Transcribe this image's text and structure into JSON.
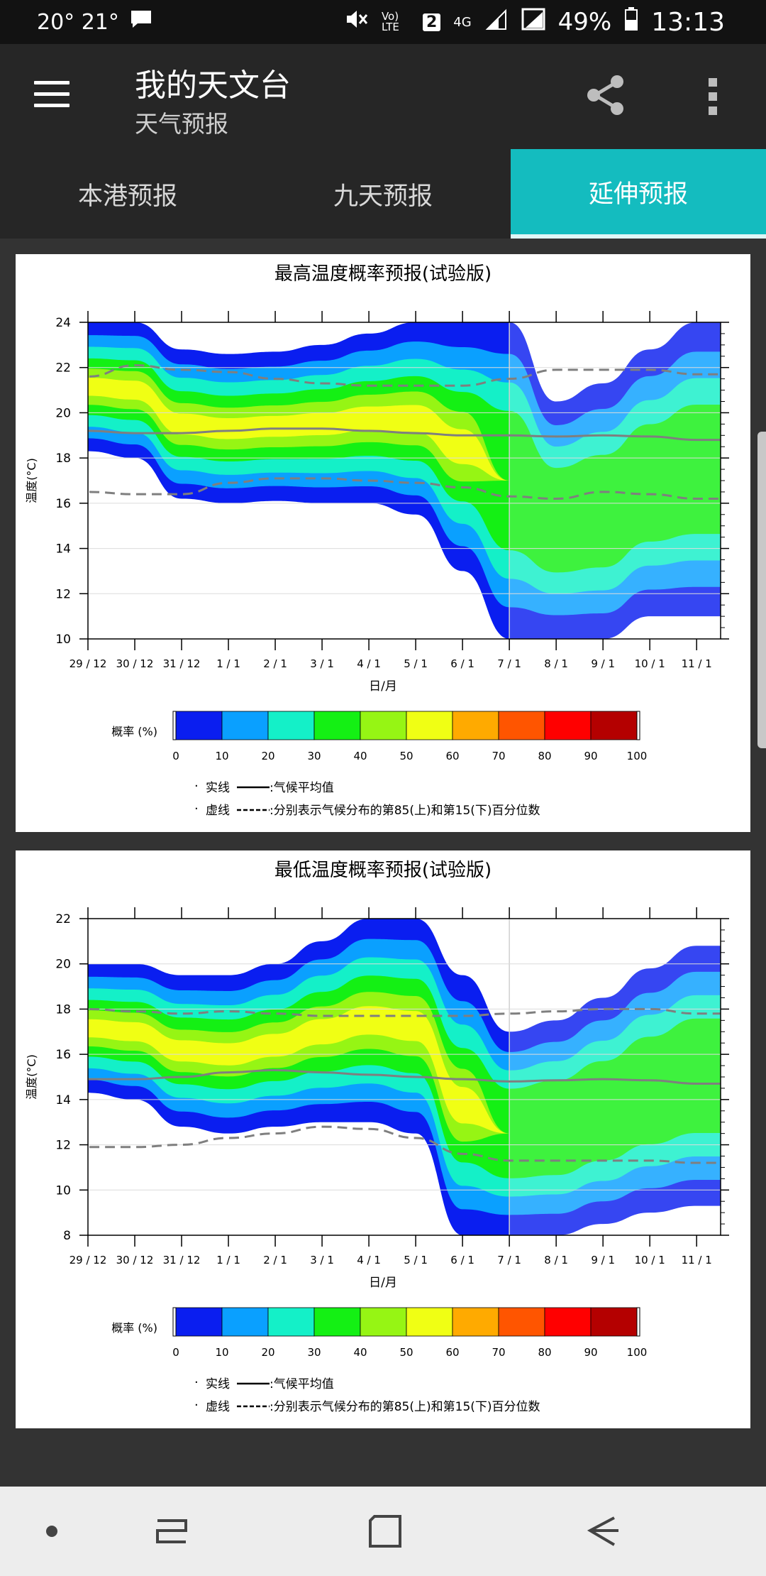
{
  "status": {
    "temps": "20° 21°",
    "network": "Vo) LTE",
    "sim": "2",
    "signal": "4G",
    "battery": "49%",
    "time": "13:13"
  },
  "app": {
    "title": "我的天文台",
    "subtitle": "天气预报"
  },
  "tabs": [
    {
      "label": "本港预报"
    },
    {
      "label": "九天预报"
    },
    {
      "label": "延伸预报"
    }
  ],
  "legend_common": {
    "colorbar_title": "概率 (%)",
    "ticks": [
      "0",
      "10",
      "20",
      "30",
      "40",
      "50",
      "60",
      "70",
      "80",
      "90",
      "100"
    ],
    "colors": [
      "#0a1ef0",
      "#0aa0ff",
      "#14f0c8",
      "#14f014",
      "#96f514",
      "#f0ff14",
      "#ffaa00",
      "#ff5500",
      "#ff0000",
      "#b40000"
    ],
    "note1_prefix": "实线",
    "note1_text": ":气候平均值",
    "note2_prefix": "虚线",
    "note2_text": ":分别表示气候分布的第85(上)和第15(下)百分位数"
  },
  "chart_data": [
    {
      "type": "heatmap",
      "title": "最高温度概率预报(试验版)",
      "xlabel": "日/月",
      "ylabel": "温度(°C)",
      "x_ticks": [
        "29 / 12",
        "30 / 12",
        "31 / 12",
        "1 / 1",
        "2 / 1",
        "3 / 1",
        "4 / 1",
        "5 / 1",
        "6 / 1",
        "7 / 1",
        "8 / 1",
        "9 / 1",
        "10 / 1",
        "11 / 1"
      ],
      "ylim": [
        10,
        24
      ],
      "y_ticks": [
        10,
        12,
        14,
        16,
        18,
        20,
        22,
        24
      ],
      "series": [
        {
          "name": "气候平均值",
          "style": "solid",
          "values": [
            19.2,
            19.1,
            19.1,
            19.2,
            19.3,
            19.3,
            19.2,
            19.1,
            19.0,
            19.0,
            18.95,
            19.0,
            18.95,
            18.8
          ]
        },
        {
          "name": "第85百分位数",
          "style": "dashed",
          "values": [
            21.6,
            22.1,
            21.9,
            21.8,
            21.5,
            21.3,
            21.2,
            21.2,
            21.2,
            21.5,
            21.9,
            21.9,
            21.9,
            21.7
          ]
        },
        {
          "name": "第15百分位数",
          "style": "dashed",
          "values": [
            16.5,
            16.4,
            16.4,
            16.9,
            17.1,
            17.1,
            17.0,
            16.9,
            16.7,
            16.3,
            16.2,
            16.5,
            16.4,
            16.2
          ]
        }
      ],
      "prob_bands": {
        "colors_note": "probability contour bands (percent)",
        "outer_upper": [
          24,
          24,
          22.8,
          22.6,
          22.7,
          23.0,
          23.5,
          24,
          24,
          24,
          20.5,
          21.3,
          22.8,
          24
        ],
        "outer_lower": [
          18.3,
          18.0,
          16.2,
          16.0,
          16.1,
          16.0,
          16.0,
          15.5,
          13.0,
          10.0,
          10.0,
          10.0,
          11.0,
          11.0
        ]
      }
    },
    {
      "type": "heatmap",
      "title": "最低温度概率预报(试验版)",
      "xlabel": "日/月",
      "ylabel": "温度(°C)",
      "x_ticks": [
        "29 / 12",
        "30 / 12",
        "31 / 12",
        "1 / 1",
        "2 / 1",
        "3 / 1",
        "4 / 1",
        "5 / 1",
        "6 / 1",
        "7 / 1",
        "8 / 1",
        "9 / 1",
        "10 / 1",
        "11 / 1"
      ],
      "ylim": [
        8,
        22
      ],
      "y_ticks": [
        8,
        10,
        12,
        14,
        16,
        18,
        20,
        22
      ],
      "series": [
        {
          "name": "气候平均值",
          "style": "solid",
          "values": [
            14.9,
            14.9,
            15.0,
            15.2,
            15.3,
            15.2,
            15.1,
            15.0,
            14.9,
            14.8,
            14.85,
            14.9,
            14.85,
            14.7
          ]
        },
        {
          "name": "第85百分位数",
          "style": "dashed",
          "values": [
            18.0,
            17.9,
            17.8,
            17.9,
            17.8,
            17.7,
            17.7,
            17.7,
            17.7,
            17.8,
            17.9,
            18.0,
            18.0,
            17.8
          ]
        },
        {
          "name": "第15百分位数",
          "style": "dashed",
          "values": [
            11.9,
            11.9,
            12.0,
            12.3,
            12.5,
            12.8,
            12.7,
            12.3,
            11.6,
            11.3,
            11.3,
            11.3,
            11.3,
            11.2
          ]
        }
      ],
      "prob_bands": {
        "colors_note": "probability contour bands (percent)",
        "outer_upper": [
          20,
          20,
          19.5,
          19.5,
          20.0,
          21.0,
          22.0,
          22.0,
          19.5,
          17.0,
          17.5,
          18.5,
          19.8,
          20.8
        ],
        "outer_lower": [
          14.3,
          14.0,
          12.8,
          12.5,
          12.8,
          13.0,
          13.0,
          12.5,
          8.0,
          8.0,
          8.0,
          8.5,
          9.0,
          9.3
        ]
      }
    }
  ]
}
